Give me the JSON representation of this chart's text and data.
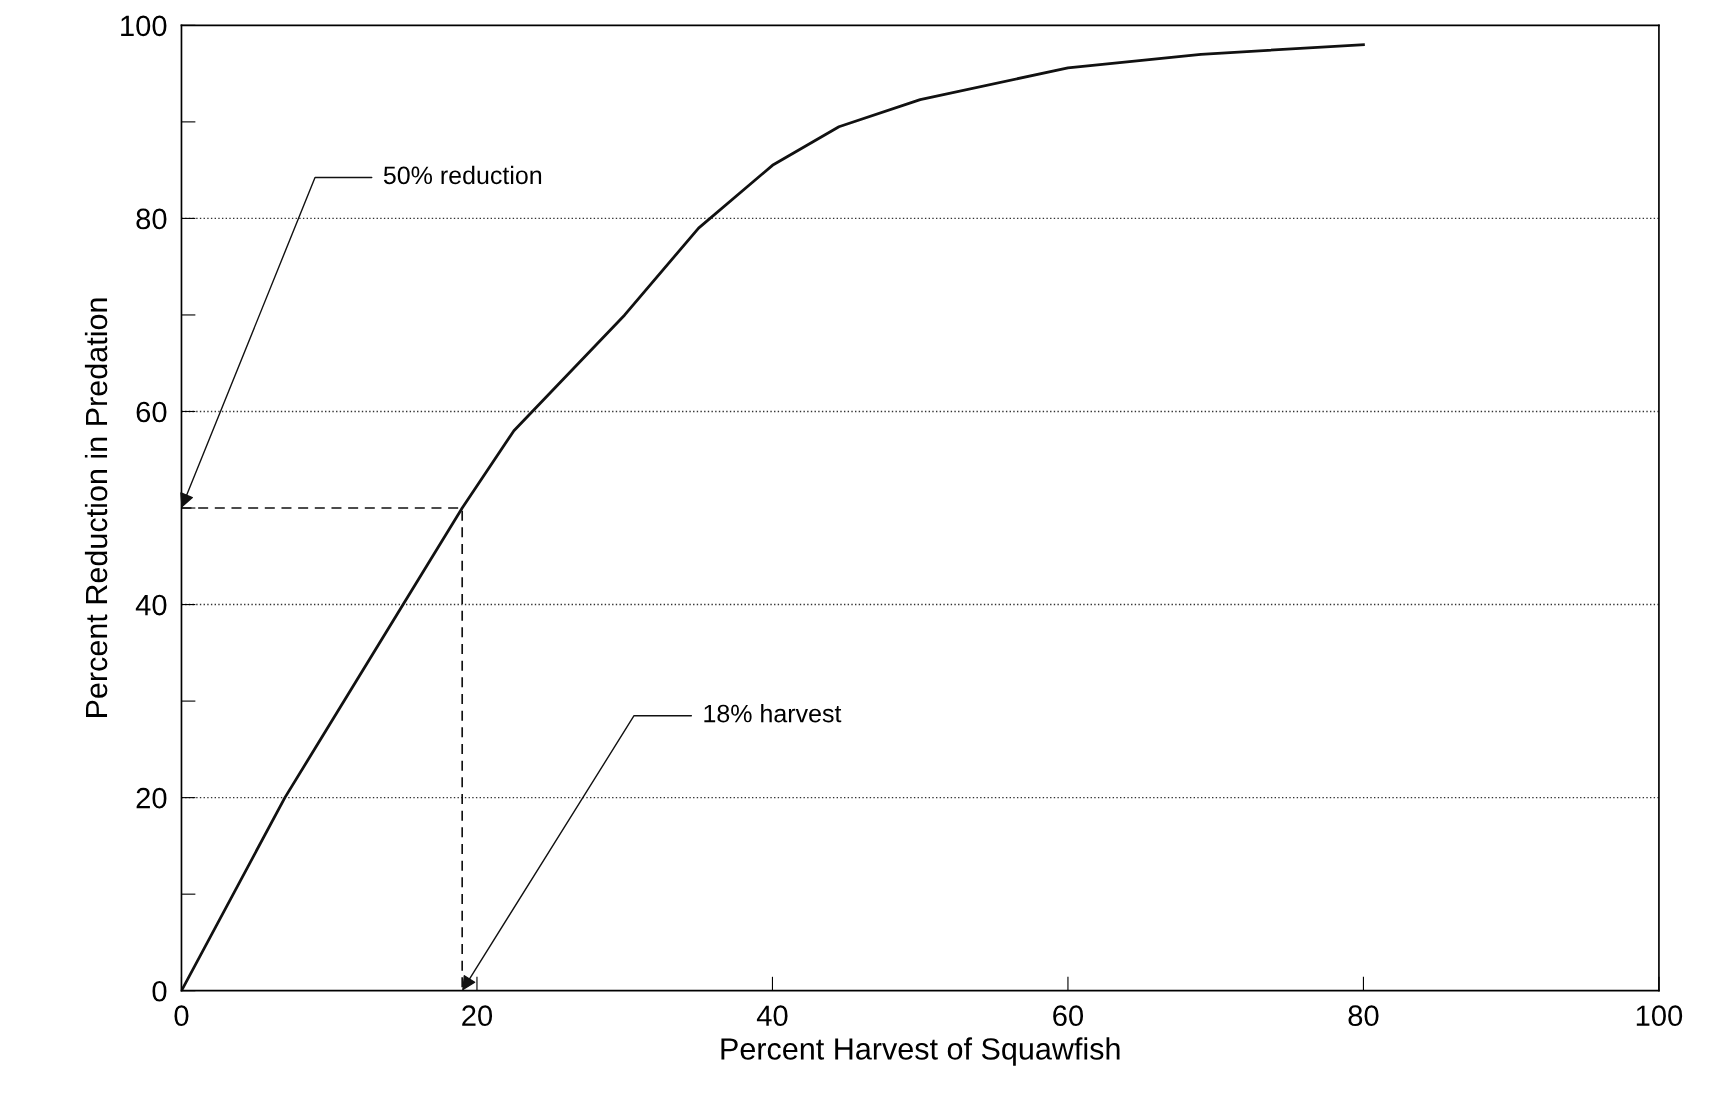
{
  "chart_data": {
    "type": "line",
    "xlabel": "Percent Harvest of Squawfish",
    "ylabel": "Percent Reduction in Predation",
    "series": [
      {
        "color": "#111111",
        "line_style": "solid",
        "x": [
          0,
          7,
          15,
          19,
          22.5,
          30,
          35,
          40,
          44.5,
          50,
          60,
          69,
          80
        ],
        "values": [
          0,
          20,
          40,
          50,
          58,
          70,
          79,
          85.5,
          89.5,
          92.3,
          95.6,
          97,
          98
        ]
      },
      {
        "color": "#111111",
        "line_style": "dashed",
        "x": [
          0,
          19,
          19
        ],
        "values": [
          50,
          50,
          0
        ]
      }
    ],
    "xlim": [
      0,
      100
    ],
    "ylim": [
      0,
      100
    ],
    "xticks": [
      0,
      20,
      40,
      60,
      80,
      100
    ],
    "yticks": [
      0,
      {
        "value": 10,
        "label": null
      },
      20,
      {
        "value": 30,
        "label": null
      },
      40,
      {
        "value": 50,
        "label": null
      },
      60,
      {
        "value": 70,
        "label": null
      },
      80,
      {
        "value": 90,
        "label": null
      },
      100
    ],
    "grid": "y",
    "marker": "none",
    "annotations": [
      {
        "text": "50% reduction",
        "x": 0,
        "y": 50
      },
      {
        "text": "18% harvest",
        "x": 19,
        "y": 0
      }
    ]
  }
}
